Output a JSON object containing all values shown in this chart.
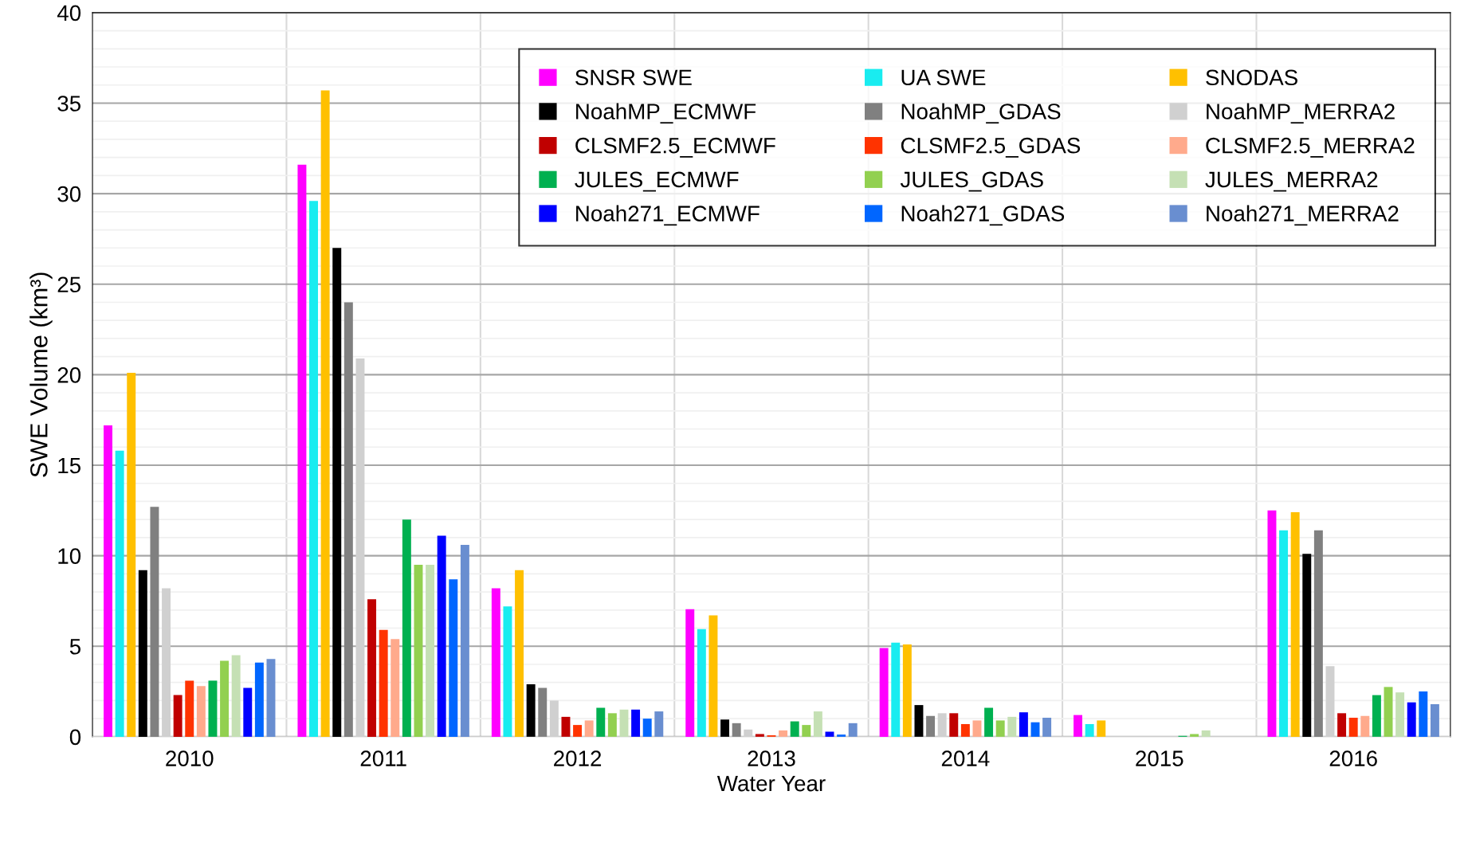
{
  "chart_data": {
    "type": "bar",
    "xlabel": "Water Year",
    "ylabel": "SWE Volume (km³)",
    "categories": [
      "2010",
      "2011",
      "2012",
      "2013",
      "2014",
      "2015",
      "2016"
    ],
    "ylim": [
      0,
      40
    ],
    "yticks": [
      0,
      5,
      10,
      15,
      20,
      25,
      30,
      35,
      40
    ],
    "grid": true,
    "legend": "top right",
    "series": [
      {
        "name": "SNSR SWE",
        "color": "#ff00ff",
        "values": [
          17.2,
          31.6,
          8.2,
          7.05,
          4.9,
          1.2,
          12.5
        ]
      },
      {
        "name": "UA SWE",
        "color": "#19ecf0",
        "values": [
          15.8,
          29.6,
          7.2,
          5.95,
          5.2,
          0.7,
          11.4
        ]
      },
      {
        "name": "SNODAS",
        "color": "#ffc000",
        "values": [
          20.1,
          35.7,
          9.2,
          6.7,
          5.1,
          0.9,
          12.4
        ]
      },
      {
        "name": "NoahMP_ECMWF",
        "color": "#000000",
        "values": [
          9.2,
          27.0,
          2.9,
          0.95,
          1.75,
          0,
          10.1
        ]
      },
      {
        "name": "NoahMP_GDAS",
        "color": "#808080",
        "values": [
          12.7,
          24.0,
          2.7,
          0.75,
          1.15,
          0,
          11.4
        ]
      },
      {
        "name": "NoahMP_MERRA2",
        "color": "#d0d0d0",
        "values": [
          8.2,
          20.9,
          2.0,
          0.4,
          1.3,
          0,
          3.9
        ]
      },
      {
        "name": "CLSMF2.5_ECMWF",
        "color": "#c00000",
        "values": [
          2.3,
          7.6,
          1.1,
          0.15,
          1.3,
          0,
          1.3
        ]
      },
      {
        "name": "CLSMF2.5_GDAS",
        "color": "#ff3300",
        "values": [
          3.1,
          5.9,
          0.65,
          0.08,
          0.7,
          0,
          1.05
        ]
      },
      {
        "name": "CLSMF2.5_MERRA2",
        "color": "#ffaa8c",
        "values": [
          2.8,
          5.4,
          0.9,
          0.35,
          0.9,
          0,
          1.15
        ]
      },
      {
        "name": "JULES_ECMWF",
        "color": "#00b050",
        "values": [
          3.1,
          12.0,
          1.6,
          0.85,
          1.6,
          0.05,
          2.3
        ]
      },
      {
        "name": "JULES_GDAS",
        "color": "#92d050",
        "values": [
          4.2,
          9.5,
          1.3,
          0.65,
          0.9,
          0.15,
          2.75
        ]
      },
      {
        "name": "JULES_MERRA2",
        "color": "#c5e0b4",
        "values": [
          4.5,
          9.5,
          1.5,
          1.4,
          1.1,
          0.35,
          2.45
        ]
      },
      {
        "name": "Noah271_ECMWF",
        "color": "#0000ff",
        "values": [
          2.7,
          11.1,
          1.5,
          0.28,
          1.35,
          0,
          1.9
        ]
      },
      {
        "name": "Noah271_GDAS",
        "color": "#0066ff",
        "values": [
          4.1,
          8.7,
          1.0,
          0.12,
          0.8,
          0,
          2.5
        ]
      },
      {
        "name": "Noah271_MERRA2",
        "color": "#698ed0",
        "values": [
          4.3,
          10.6,
          1.4,
          0.75,
          1.05,
          0,
          1.8
        ]
      }
    ]
  }
}
